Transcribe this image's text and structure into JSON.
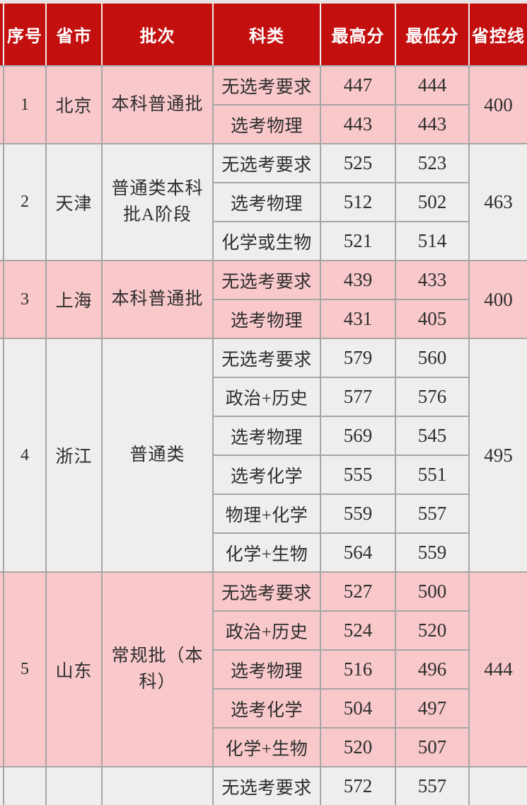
{
  "colors": {
    "header_red": "#c3100f",
    "row_pink": "#f9c8ca",
    "row_light": "#efeeec",
    "border_gray": "#a6a6a6",
    "header_gap": "#efedeb",
    "top_strip": "#e7e5e3",
    "body_text": "#2e2e2e",
    "header_text": "#ffffff"
  },
  "table": {
    "header": {
      "cols": [
        "序号",
        "省市",
        "批次",
        "科类",
        "最高分",
        "最低分",
        "省控线"
      ]
    },
    "sections": [
      {
        "serial": "1",
        "province": "北京",
        "batch": "本科普通批",
        "control_line": "400",
        "zebra": "pink",
        "rows": [
          {
            "category": "无选考要求",
            "max": "447",
            "min": "444"
          },
          {
            "category": "选考物理",
            "max": "443",
            "min": "443"
          }
        ]
      },
      {
        "serial": "2",
        "province": "天津",
        "batch": "普通类本科\n批A阶段",
        "control_line": "463",
        "zebra": "light",
        "rows": [
          {
            "category": "无选考要求",
            "max": "525",
            "min": "523"
          },
          {
            "category": "选考物理",
            "max": "512",
            "min": "502"
          },
          {
            "category": "化学或生物",
            "max": "521",
            "min": "514"
          }
        ]
      },
      {
        "serial": "3",
        "province": "上海",
        "batch": "本科普通批",
        "control_line": "400",
        "zebra": "pink",
        "rows": [
          {
            "category": "无选考要求",
            "max": "439",
            "min": "433"
          },
          {
            "category": "选考物理",
            "max": "431",
            "min": "405"
          }
        ]
      },
      {
        "serial": "4",
        "province": "浙江",
        "batch": "普通类",
        "control_line": "495",
        "zebra": "light",
        "rows": [
          {
            "category": "无选考要求",
            "max": "579",
            "min": "560"
          },
          {
            "category": "政治+历史",
            "max": "577",
            "min": "576"
          },
          {
            "category": "选考物理",
            "max": "569",
            "min": "545"
          },
          {
            "category": "选考化学",
            "max": "555",
            "min": "551"
          },
          {
            "category": "物理+化学",
            "max": "559",
            "min": "557"
          },
          {
            "category": "化学+生物",
            "max": "564",
            "min": "559"
          }
        ]
      },
      {
        "serial": "5",
        "province": "山东",
        "batch": "常规批（本\n科）",
        "control_line": "444",
        "zebra": "pink",
        "rows": [
          {
            "category": "无选考要求",
            "max": "527",
            "min": "500"
          },
          {
            "category": "政治+历史",
            "max": "524",
            "min": "520"
          },
          {
            "category": "选考物理",
            "max": "516",
            "min": "496"
          },
          {
            "category": "选考化学",
            "max": "504",
            "min": "497"
          },
          {
            "category": "化学+生物",
            "max": "520",
            "min": "507"
          }
        ]
      },
      {
        "serial": "",
        "province": "",
        "batch": "",
        "control_line": "",
        "zebra": "light",
        "rows": [
          {
            "category": "无选考要求",
            "max": "572",
            "min": "557"
          }
        ]
      }
    ]
  }
}
